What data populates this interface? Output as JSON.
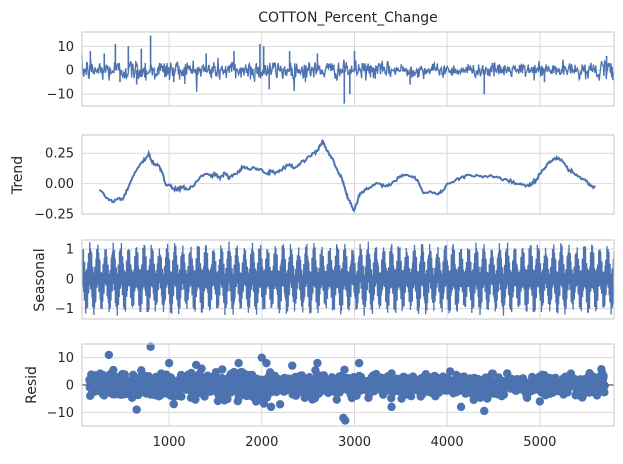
{
  "figure": {
    "title": "COTTON_Percent_Change"
  },
  "chart_data": [
    {
      "type": "line",
      "panel": "observed",
      "title": "COTTON_Percent_Change",
      "ylabel": "",
      "xlim": [
        60,
        5800
      ],
      "ylim": [
        -15,
        16
      ],
      "yticks": [
        -10,
        0,
        10
      ],
      "xticks": [
        1000,
        2000,
        3000,
        4000,
        5000
      ],
      "color": "#4c72b0",
      "noise_amplitude": [
        {
          "x": 60,
          "amp": 3.2
        },
        {
          "x": 1000,
          "amp": 3.0
        },
        {
          "x": 2000,
          "amp": 3.0
        },
        {
          "x": 3000,
          "amp": 2.4
        },
        {
          "x": 4000,
          "amp": 1.8
        },
        {
          "x": 5000,
          "amp": 2.0
        },
        {
          "x": 5800,
          "amp": 2.4
        }
      ],
      "notable_points": [
        {
          "x": 150,
          "y": 8
        },
        {
          "x": 300,
          "y": 7
        },
        {
          "x": 420,
          "y": 11
        },
        {
          "x": 470,
          "y": -5
        },
        {
          "x": 560,
          "y": 10
        },
        {
          "x": 700,
          "y": 9
        },
        {
          "x": 800,
          "y": 14.5
        },
        {
          "x": 650,
          "y": -6
        },
        {
          "x": 1050,
          "y": -5
        },
        {
          "x": 1400,
          "y": 7
        },
        {
          "x": 1700,
          "y": 8
        },
        {
          "x": 1980,
          "y": 11
        },
        {
          "x": 2020,
          "y": 10
        },
        {
          "x": 2080,
          "y": -8
        },
        {
          "x": 2300,
          "y": 8
        },
        {
          "x": 2600,
          "y": 7
        },
        {
          "x": 2890,
          "y": -14
        },
        {
          "x": 2950,
          "y": -10
        },
        {
          "x": 3000,
          "y": 8
        },
        {
          "x": 3600,
          "y": -6
        },
        {
          "x": 4400,
          "y": -10
        },
        {
          "x": 5050,
          "y": -5
        },
        {
          "x": 5720,
          "y": 6
        }
      ]
    },
    {
      "type": "line",
      "panel": "trend",
      "ylabel": "Trend",
      "xlim": [
        60,
        5800
      ],
      "ylim": [
        -0.25,
        0.4
      ],
      "yticks": [
        -0.25,
        0.0,
        0.25
      ],
      "ytick_labels": [
        "−0.25",
        "0.00",
        "0.25"
      ],
      "xticks": [
        1000,
        2000,
        3000,
        4000,
        5000
      ],
      "color": "#4c72b0",
      "x": [
        250,
        330,
        400,
        450,
        500,
        560,
        620,
        700,
        760,
        780,
        800,
        830,
        880,
        920,
        960,
        1000,
        1050,
        1100,
        1150,
        1200,
        1260,
        1330,
        1400,
        1450,
        1500,
        1550,
        1600,
        1650,
        1700,
        1750,
        1800,
        1860,
        1920,
        1980,
        2050,
        2100,
        2150,
        2200,
        2300,
        2350,
        2420,
        2480,
        2560,
        2600,
        2630,
        2660,
        2700,
        2760,
        2820,
        2860,
        2900,
        2930,
        2960,
        2990,
        3020,
        3060,
        3120,
        3180,
        3250,
        3320,
        3400,
        3480,
        3550,
        3620,
        3680,
        3750,
        3830,
        3900,
        3960,
        4000,
        4080,
        4150,
        4250,
        4350,
        4450,
        4550,
        4650,
        4750,
        4830,
        4880,
        4920,
        4960,
        5000,
        5050,
        5100,
        5150,
        5200,
        5250,
        5300,
        5350,
        5420,
        5500,
        5550,
        5600
      ],
      "y": [
        -0.05,
        -0.12,
        -0.15,
        -0.12,
        -0.13,
        -0.03,
        0.07,
        0.17,
        0.22,
        0.25,
        0.2,
        0.17,
        0.15,
        0.1,
        0.0,
        -0.01,
        -0.04,
        -0.05,
        -0.03,
        -0.05,
        -0.02,
        0.05,
        0.08,
        0.06,
        0.08,
        0.04,
        0.09,
        0.04,
        0.08,
        0.1,
        0.14,
        0.12,
        0.13,
        0.12,
        0.08,
        0.1,
        0.09,
        0.11,
        0.16,
        0.13,
        0.17,
        0.2,
        0.25,
        0.27,
        0.32,
        0.35,
        0.27,
        0.21,
        0.1,
        0.05,
        -0.05,
        -0.12,
        -0.16,
        -0.22,
        -0.17,
        -0.08,
        -0.05,
        -0.03,
        0.0,
        -0.02,
        0.0,
        0.05,
        0.07,
        0.06,
        0.03,
        -0.08,
        -0.07,
        -0.09,
        -0.05,
        0.0,
        0.02,
        0.05,
        0.07,
        0.06,
        0.06,
        0.05,
        0.03,
        0.0,
        -0.01,
        -0.02,
        0.01,
        0.03,
        0.08,
        0.12,
        0.18,
        0.2,
        0.21,
        0.18,
        0.12,
        0.1,
        0.06,
        0.02,
        -0.02,
        -0.03
      ]
    },
    {
      "type": "line",
      "panel": "seasonal",
      "ylabel": "Seasonal",
      "xlim": [
        60,
        5800
      ],
      "ylim": [
        -1.35,
        1.3
      ],
      "yticks": [
        -1,
        0,
        1
      ],
      "xticks": [
        1000,
        2000,
        3000,
        4000,
        5000
      ],
      "color": "#4c72b0",
      "amplitude": 1.25
    },
    {
      "type": "scatter",
      "panel": "resid",
      "ylabel": "Resid",
      "xlim": [
        60,
        5800
      ],
      "ylim": [
        -15,
        15
      ],
      "yticks": [
        -10,
        0,
        10
      ],
      "xticks": [
        1000,
        2000,
        3000,
        4000,
        5000
      ],
      "xtick_labels": [
        "1000",
        "2000",
        "3000",
        "4000",
        "5000"
      ],
      "color": "#4c72b0",
      "zero_line": true,
      "noise_amplitude": [
        {
          "x": 60,
          "amp": 3.6
        },
        {
          "x": 1000,
          "amp": 3.3
        },
        {
          "x": 2000,
          "amp": 3.4
        },
        {
          "x": 3000,
          "amp": 2.8
        },
        {
          "x": 4000,
          "amp": 2.3
        },
        {
          "x": 5000,
          "amp": 2.3
        },
        {
          "x": 5800,
          "amp": 2.6
        }
      ],
      "notable_points": [
        {
          "x": 350,
          "y": 11
        },
        {
          "x": 800,
          "y": 14
        },
        {
          "x": 1000,
          "y": 8
        },
        {
          "x": 1350,
          "y": 6
        },
        {
          "x": 1750,
          "y": 8
        },
        {
          "x": 2000,
          "y": 10
        },
        {
          "x": 2050,
          "y": 8
        },
        {
          "x": 2600,
          "y": 8
        },
        {
          "x": 2880,
          "y": -12
        },
        {
          "x": 2900,
          "y": -13
        },
        {
          "x": 3050,
          "y": 8
        },
        {
          "x": 3400,
          "y": -8
        },
        {
          "x": 4150,
          "y": -8
        },
        {
          "x": 4400,
          "y": -9.5
        },
        {
          "x": 5000,
          "y": -6
        },
        {
          "x": 650,
          "y": -9
        },
        {
          "x": 1050,
          "y": -7
        },
        {
          "x": 2100,
          "y": -8
        }
      ]
    }
  ]
}
